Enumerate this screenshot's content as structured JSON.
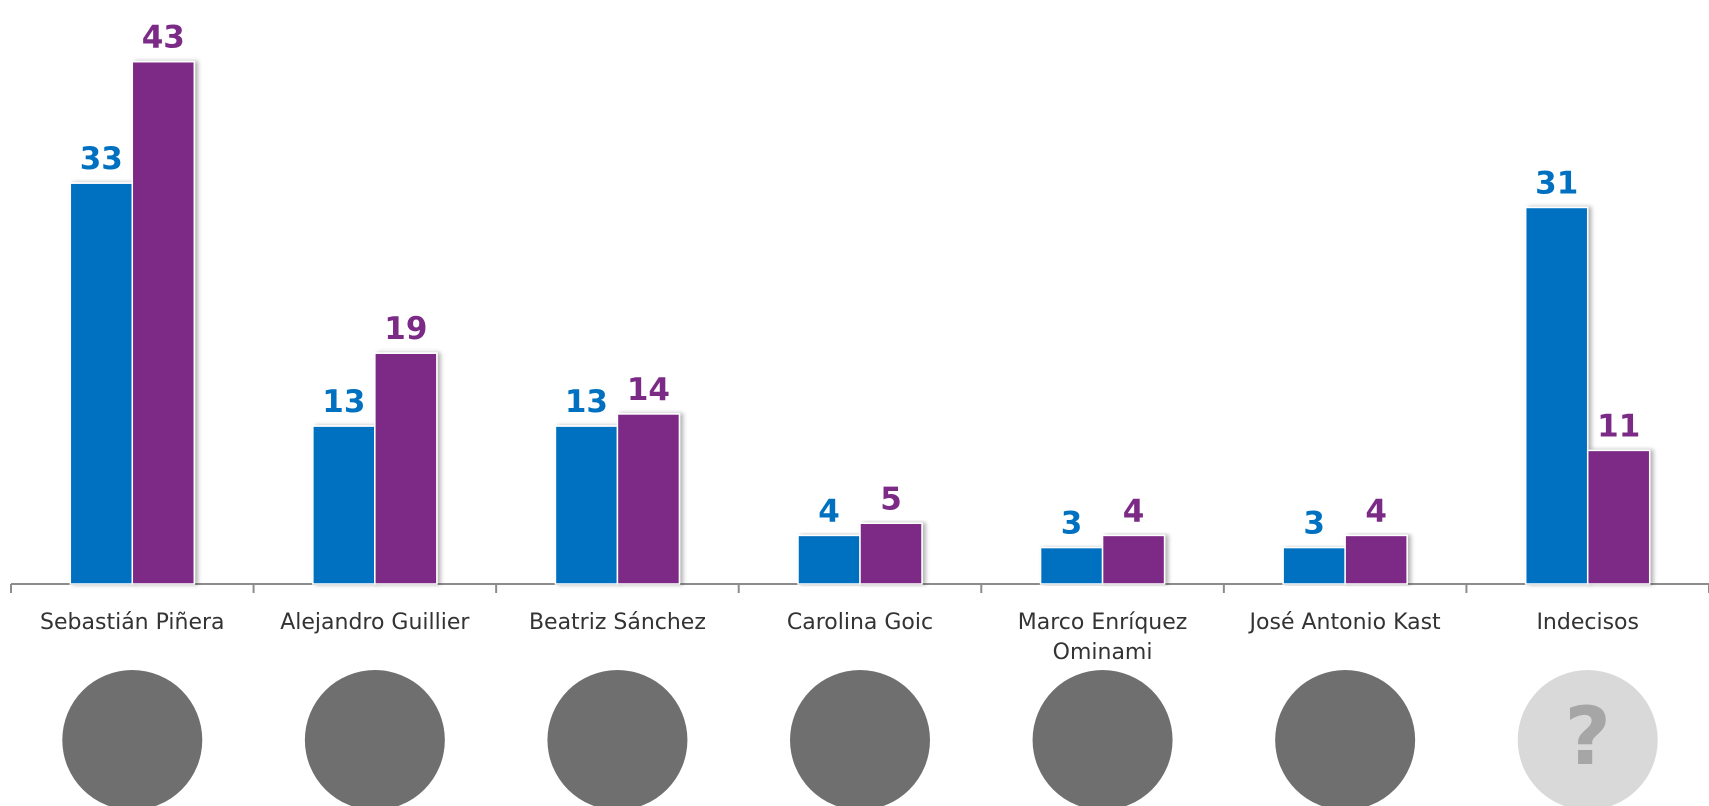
{
  "chart_data": {
    "type": "bar",
    "categories": [
      "Sebastián Piñera",
      "Alejandro Guillier",
      "Beatriz Sánchez",
      "Carolina Goic",
      "Marco Enríquez Ominami",
      "José Antonio Kast",
      "Indecisos"
    ],
    "series": [
      {
        "color": "#0070c0",
        "values": [
          33,
          13,
          13,
          4,
          3,
          3,
          31
        ]
      },
      {
        "color": "#7b2a86",
        "values": [
          43,
          19,
          14,
          5,
          4,
          4,
          11
        ]
      }
    ],
    "ylim": [
      0,
      48
    ],
    "unknown_icon": "?"
  }
}
